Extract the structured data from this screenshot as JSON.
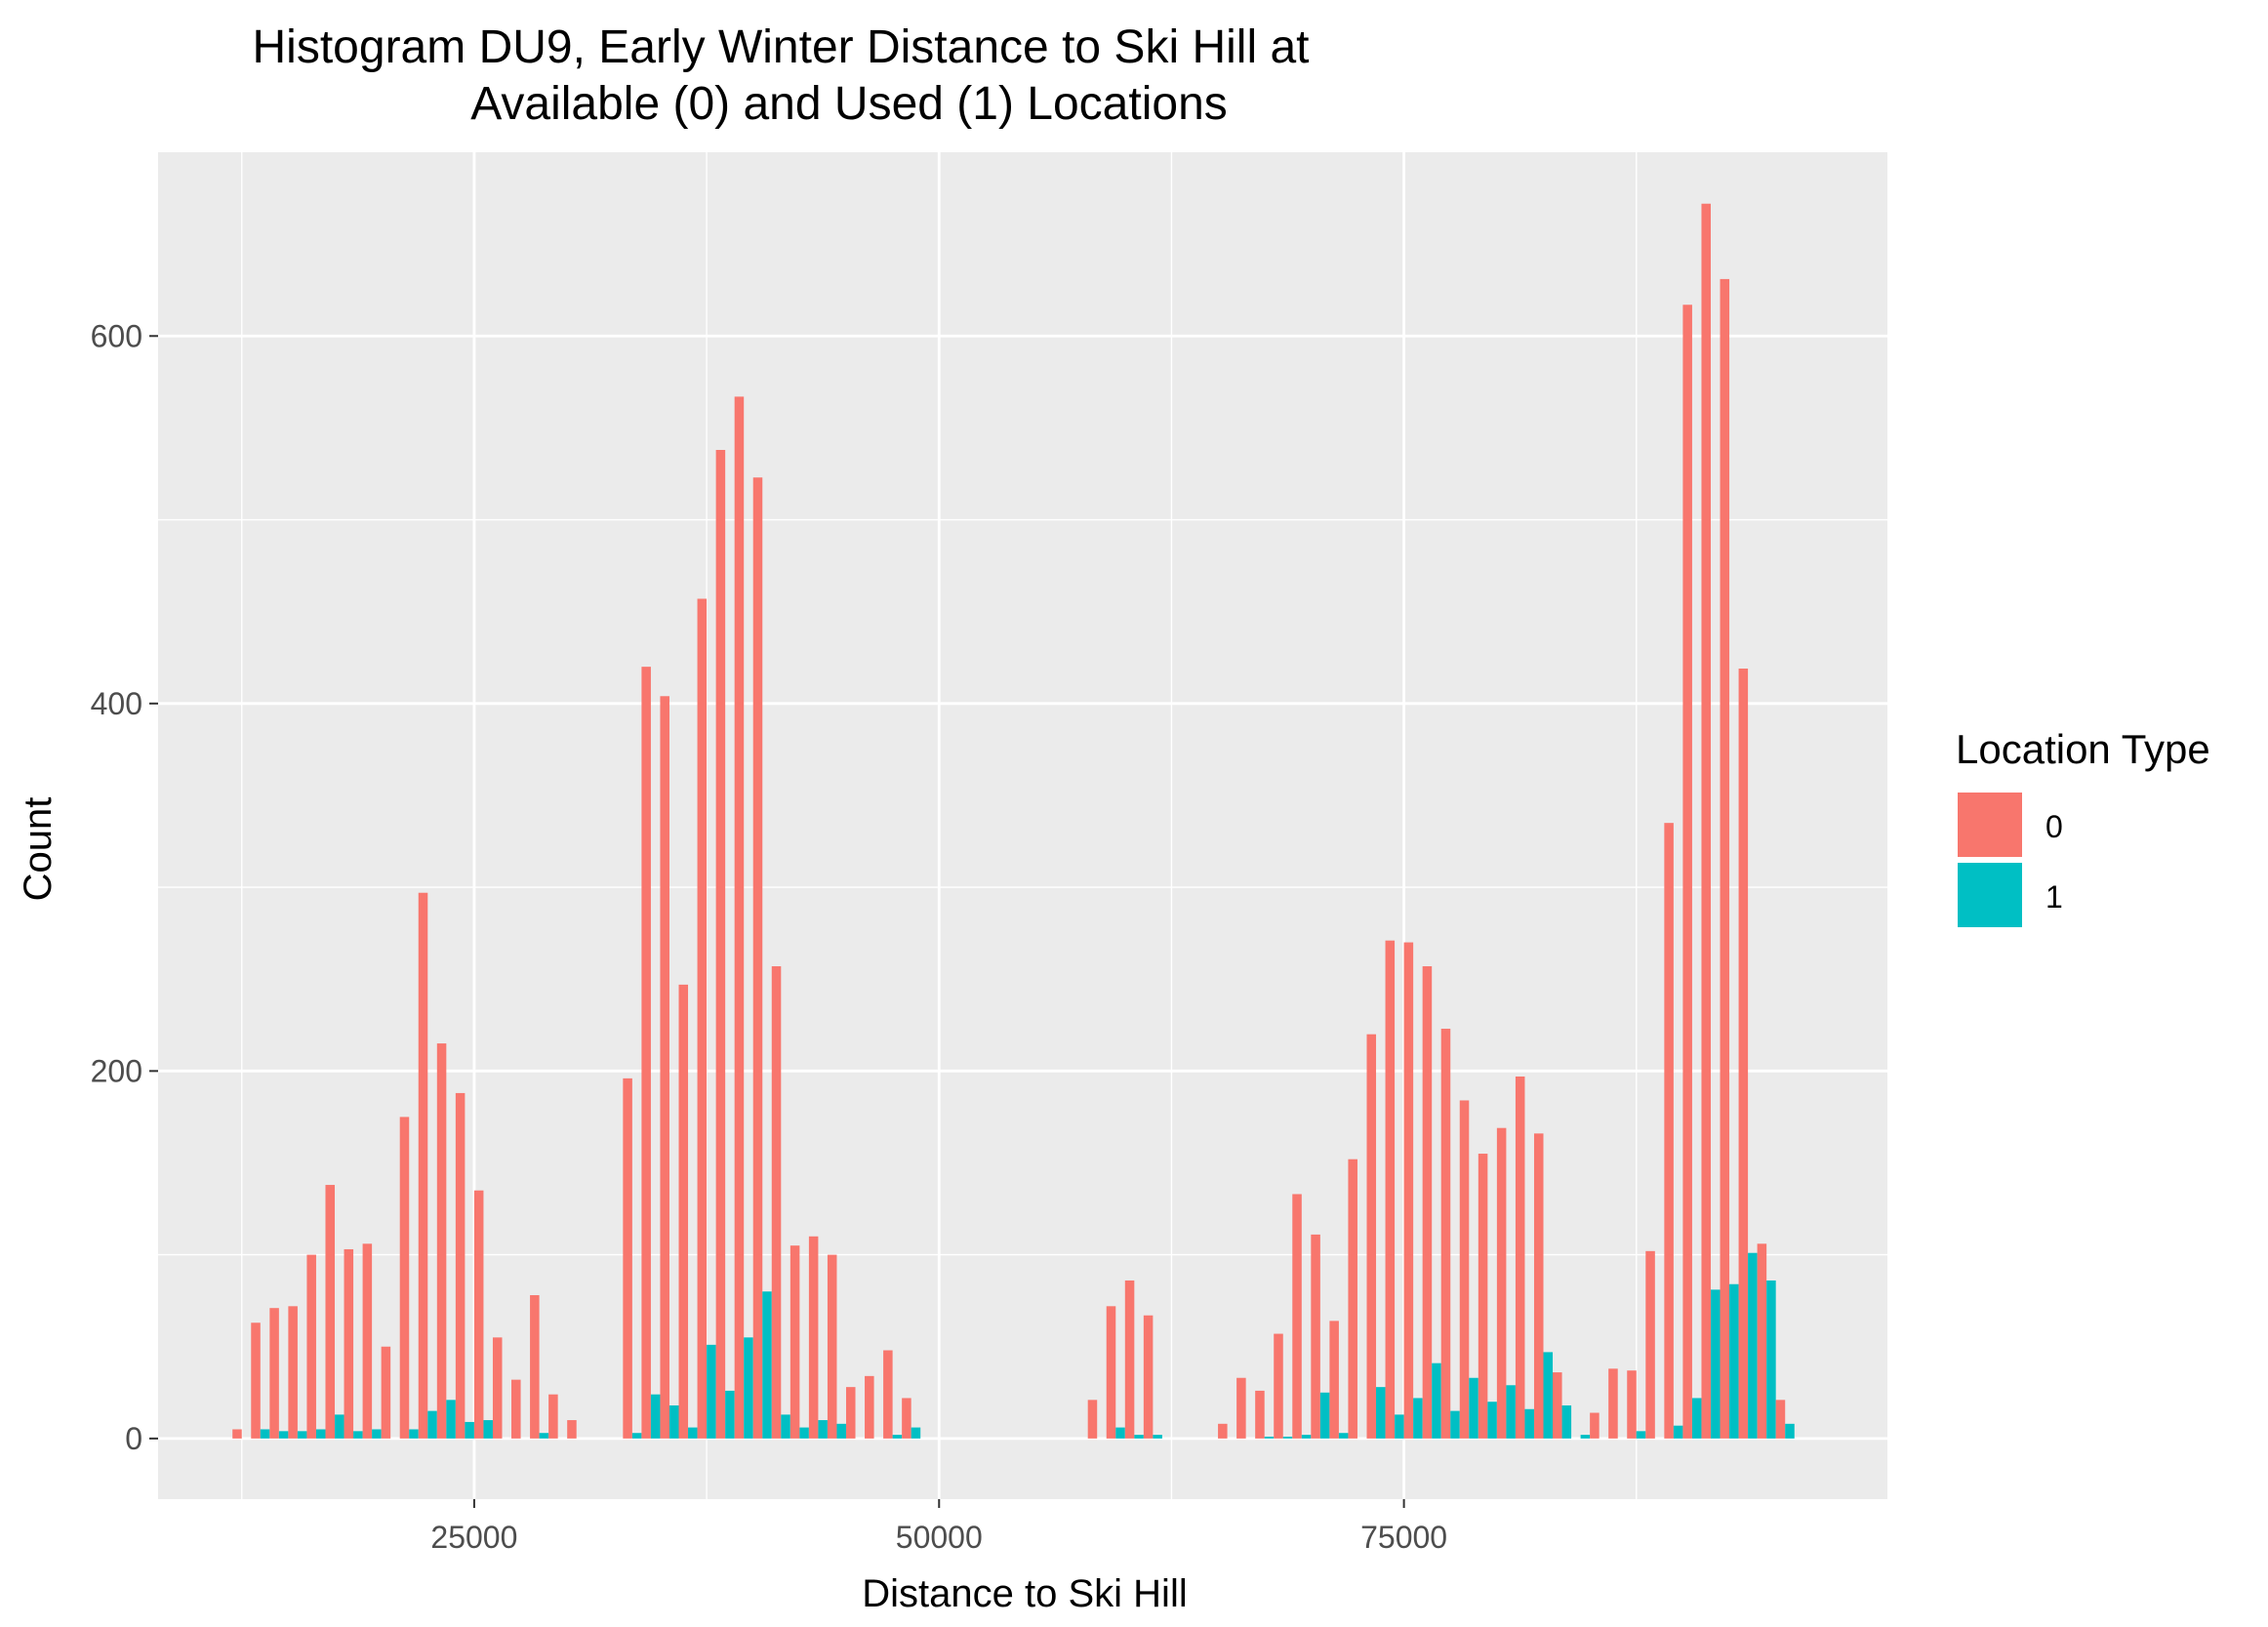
{
  "chart_data": {
    "type": "bar",
    "title_lines": [
      "Histogram DU9, Early Winter Distance to Ski Hill at",
      "Available (0) and Used (1) Locations"
    ],
    "xlabel": "Distance to Ski Hill",
    "ylabel": "Count",
    "xlim": [
      8000,
      101000
    ],
    "ylim": [
      -33,
      700
    ],
    "x_ticks": [
      25000,
      50000,
      75000
    ],
    "x_tick_labels": [
      "25000",
      "50000",
      "75000"
    ],
    "y_ticks": [
      0,
      200,
      400,
      600
    ],
    "y_tick_labels": [
      "0",
      "200",
      "400",
      "600"
    ],
    "grid": true,
    "panel_background": "#EBEBEB",
    "legend": {
      "title": "Location Type",
      "position": "right",
      "entries": [
        {
          "label": "0",
          "color": "#F8766D"
        },
        {
          "label": "1",
          "color": "#00BFC4"
        }
      ]
    },
    "bin_width": 1000,
    "bin_centers": [
      12500,
      13500,
      14500,
      15500,
      16500,
      17500,
      18500,
      19500,
      20500,
      21500,
      22500,
      23500,
      24500,
      25500,
      26500,
      27500,
      28500,
      29500,
      30500,
      31500,
      32500,
      33500,
      34500,
      35500,
      36500,
      37500,
      38500,
      39500,
      40500,
      41500,
      42500,
      43500,
      44500,
      45500,
      46500,
      47500,
      48500,
      49500,
      50500,
      51500,
      52500,
      53500,
      54500,
      55500,
      56500,
      57500,
      58500,
      59500,
      60500,
      61500,
      62500,
      63500,
      64500,
      65500,
      66500,
      67500,
      68500,
      69500,
      70500,
      71500,
      72500,
      73500,
      74500,
      75500,
      76500,
      77500,
      78500,
      79500,
      80500,
      81500,
      82500,
      83500,
      84500,
      85500,
      86500,
      87500,
      88500,
      89500,
      90500,
      91500,
      92500,
      93500,
      94500,
      95500
    ],
    "series": [
      {
        "name": "0",
        "color": "#F8766D",
        "values": [
          5,
          63,
          71,
          72,
          100,
          138,
          103,
          106,
          50,
          175,
          297,
          215,
          188,
          135,
          55,
          32,
          78,
          24,
          10,
          0,
          0,
          196,
          420,
          404,
          247,
          457,
          538,
          567,
          523,
          257,
          105,
          110,
          100,
          28,
          34,
          48,
          22,
          0,
          0,
          0,
          0,
          0,
          0,
          0,
          0,
          0,
          21,
          72,
          86,
          67,
          0,
          0,
          0,
          8,
          33,
          26,
          57,
          133,
          111,
          64,
          152,
          220,
          271,
          270,
          257,
          223,
          184,
          155,
          169,
          197,
          166,
          36,
          0,
          14,
          38,
          37,
          102,
          335,
          617,
          672,
          631,
          419,
          106,
          21
        ]
      },
      {
        "name": "1",
        "color": "#00BFC4",
        "values": [
          0,
          5,
          4,
          4,
          5,
          13,
          4,
          5,
          0,
          5,
          15,
          21,
          9,
          10,
          0,
          0,
          3,
          0,
          0,
          0,
          0,
          3,
          24,
          18,
          6,
          51,
          26,
          55,
          80,
          13,
          6,
          10,
          8,
          0,
          0,
          2,
          6,
          0,
          0,
          0,
          0,
          0,
          0,
          0,
          0,
          0,
          0,
          6,
          2,
          2,
          0,
          0,
          0,
          0,
          0,
          1,
          1,
          2,
          25,
          3,
          0,
          28,
          13,
          22,
          41,
          15,
          33,
          20,
          29,
          16,
          47,
          18,
          2,
          0,
          0,
          4,
          0,
          7,
          22,
          81,
          84,
          101,
          86,
          8
        ]
      }
    ]
  }
}
